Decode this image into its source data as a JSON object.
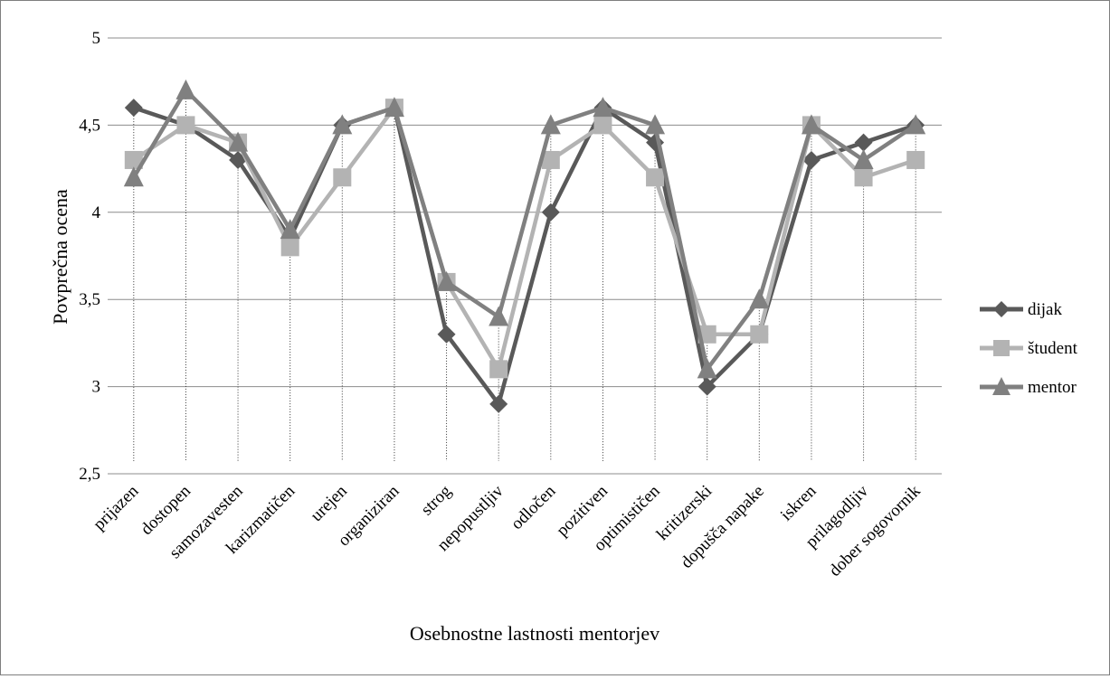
{
  "chart_data": {
    "type": "line",
    "title": "",
    "xlabel": "Osebnostne lastnosti mentorjev",
    "ylabel": "Povprečna ocena",
    "ylim": [
      2.5,
      5
    ],
    "yticks": [
      "2,5",
      "3",
      "3,5",
      "4",
      "4,5",
      "5"
    ],
    "grid": true,
    "legend_position": "right",
    "categories": [
      "prijazen",
      "dostopen",
      "samozavesten",
      "karizmatičen",
      "urejen",
      "organiziran",
      "strog",
      "nepopustljiv",
      "odločen",
      "pozitiven",
      "optimističen",
      "kritizerski",
      "dopušča napake",
      "iskren",
      "prilagodljiv",
      "dober sogovornik"
    ],
    "series": [
      {
        "name": "dijak",
        "marker": "diamond",
        "color": "#595959",
        "values": [
          4.6,
          4.5,
          4.3,
          3.85,
          4.5,
          4.6,
          3.3,
          2.9,
          4.0,
          4.6,
          4.4,
          3.0,
          3.3,
          4.3,
          4.4,
          4.5
        ]
      },
      {
        "name": "študent",
        "marker": "square",
        "color": "#b3b3b3",
        "values": [
          4.3,
          4.5,
          4.4,
          3.8,
          4.2,
          4.6,
          3.6,
          3.1,
          4.3,
          4.5,
          4.2,
          3.3,
          3.3,
          4.5,
          4.2,
          4.3
        ]
      },
      {
        "name": "mentor",
        "marker": "triangle",
        "color": "#808080",
        "values": [
          4.2,
          4.7,
          4.4,
          3.9,
          4.5,
          4.6,
          3.6,
          3.4,
          4.5,
          4.6,
          4.5,
          3.1,
          3.5,
          4.5,
          4.3,
          4.5
        ]
      }
    ]
  }
}
